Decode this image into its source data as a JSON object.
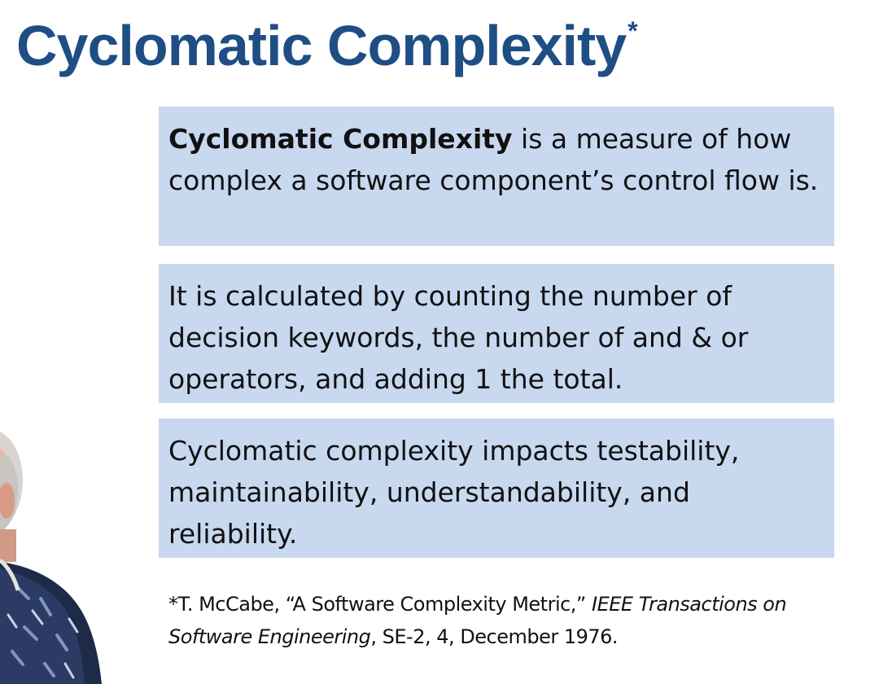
{
  "slide": {
    "title": "Cyclomatic Complexity",
    "title_mark": "*"
  },
  "boxes": [
    {
      "lead_bold": "Cyclomatic Complexity",
      "rest": " is a measure of how complex a software component’s control flow is."
    },
    {
      "text": "It is calculated by counting the number of decision keywords, the number of and & or operators, and adding 1 the total."
    },
    {
      "text": "Cyclomatic complexity impacts testability, maintainability, understandability, and reliability."
    }
  ],
  "reference": {
    "marker": "*",
    "part1": "T. McCabe, “A Software Complexity Metric,” ",
    "journal": "IEEE Transactions on Software Engineering",
    "part2": ", SE-2, 4, December 1976."
  },
  "colors": {
    "title": "#1f4e85",
    "box_fill": "#c7d8ef"
  },
  "image": {
    "icon": "person-photo"
  }
}
